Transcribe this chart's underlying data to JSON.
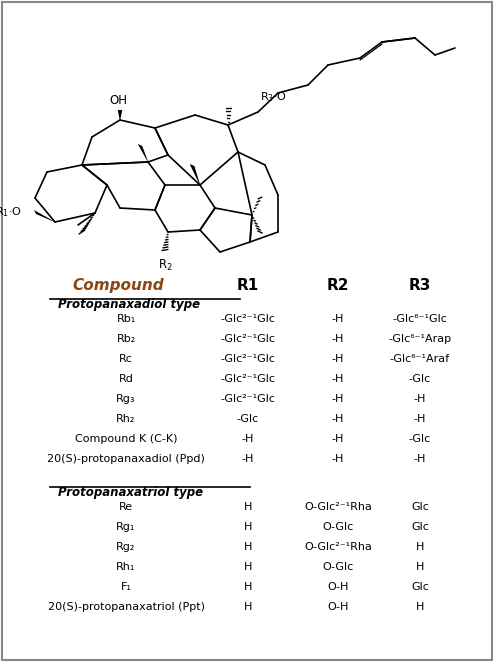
{
  "bg_color": "#ffffff",
  "border_color": "#888888",
  "text_color": "#000000",
  "compound_header_color": "#8B4513",
  "header_cols": [
    "Compound",
    "R1",
    "R2",
    "R3"
  ],
  "section1_title": "Protopanaxadiol type",
  "section1_rows": [
    [
      "Rb₁",
      "-Glc²⁻¹Glc",
      "-H",
      "-Glc⁶⁻¹Glc"
    ],
    [
      "Rb₂",
      "-Glc²⁻¹Glc",
      "-H",
      "-Glc⁶⁻¹Arap"
    ],
    [
      "Rc",
      "-Glc²⁻¹Glc",
      "-H",
      "-Glc⁶⁻¹Araf"
    ],
    [
      "Rd",
      "-Glc²⁻¹Glc",
      "-H",
      "-Glc"
    ],
    [
      "Rg₃",
      "-Glc²⁻¹Glc",
      "-H",
      "-H"
    ],
    [
      "Rh₂",
      "-Glc",
      "-H",
      "-H"
    ],
    [
      "Compound K (C-K)",
      "-H",
      "-H",
      "-Glc"
    ],
    [
      "20(S)-protopanaxadiol (Ppd)",
      "-H",
      "-H",
      "-H"
    ]
  ],
  "section2_title": "Protopanaxatriol type",
  "section2_rows": [
    [
      "Re",
      "H",
      "O-Glc²⁻¹Rha",
      "Glc"
    ],
    [
      "Rg₁",
      "H",
      "O-Glc",
      "Glc"
    ],
    [
      "Rg₂",
      "H",
      "O-Glc²⁻¹Rha",
      "H"
    ],
    [
      "Rh₁",
      "H",
      "O-Glc",
      "H"
    ],
    [
      "F₁",
      "H",
      "O-H",
      "Glc"
    ],
    [
      "20(S)-protopanaxatriol (Ppt)",
      "H",
      "O-H",
      "H"
    ]
  ]
}
